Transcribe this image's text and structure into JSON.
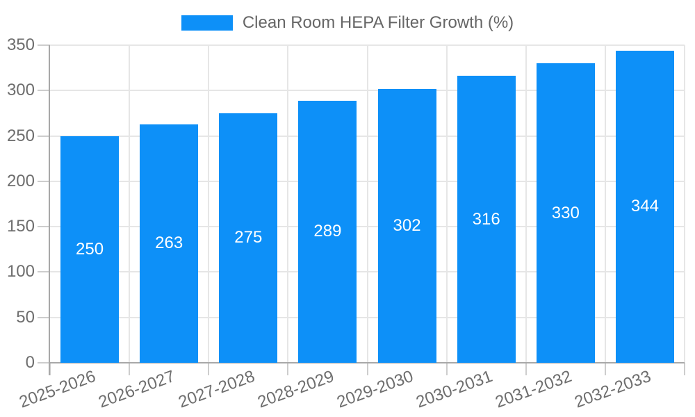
{
  "chart_data": {
    "type": "bar",
    "series_label": "Clean Room HEPA Filter Growth (%)",
    "categories": [
      "2025-2026",
      "2026-2027",
      "2027-2028",
      "2028-2029",
      "2029-2030",
      "2030-2031",
      "2031-2032",
      "2032-2033"
    ],
    "values": [
      250,
      263,
      275,
      289,
      302,
      316,
      330,
      344
    ],
    "value_labels": [
      "250",
      "263",
      "275",
      "289",
      "302",
      "316",
      "330",
      "344"
    ],
    "ylim": [
      0,
      350
    ],
    "ytick_step": 50,
    "ytick_labels": [
      "0",
      "50",
      "100",
      "150",
      "200",
      "250",
      "300",
      "350"
    ],
    "grid": true,
    "legend_position": "top-center",
    "value_label_position": "center-inside",
    "colors": {
      "bar": "#0d90f8",
      "value_label_text": "#ffffff",
      "legend_text": "#666666",
      "tick_text": "#6e6e6e",
      "grid": "#e6e6e6",
      "axis": "#a8a8a8",
      "tick_mark": "#cdcdcd",
      "background": "#ffffff"
    }
  }
}
